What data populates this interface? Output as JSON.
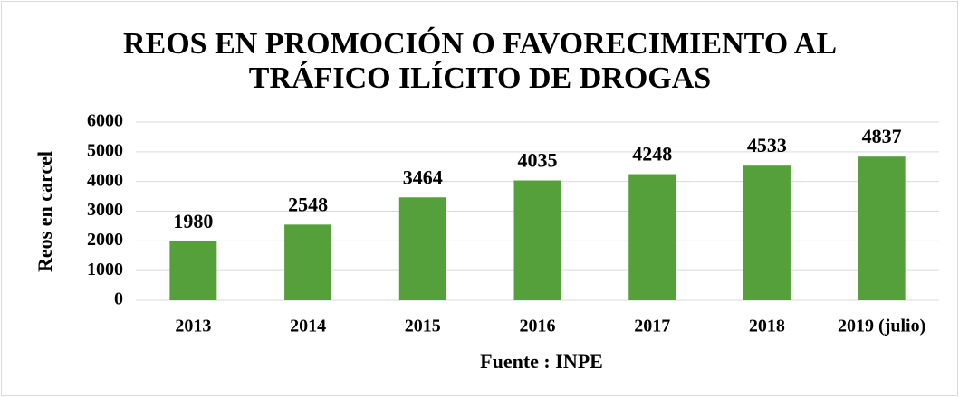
{
  "chart_data": {
    "type": "bar",
    "title": "REOS EN PROMOCIÓN O FAVORECIMIENTO AL TRÁFICO ILÍCITO DE DROGAS",
    "x_label": "Fuente : INPE",
    "y_label": "Reos en carcel",
    "categories": [
      "2013",
      "2014",
      "2015",
      "2016",
      "2017",
      "2018",
      "2019 (julio)"
    ],
    "values": [
      1980,
      2548,
      3464,
      4035,
      4248,
      4533,
      4837
    ],
    "color": "#56a03c",
    "ylim": [
      0,
      6000
    ],
    "yticks": [
      0,
      1000,
      2000,
      3000,
      4000,
      5000,
      6000
    ],
    "grid": true
  }
}
